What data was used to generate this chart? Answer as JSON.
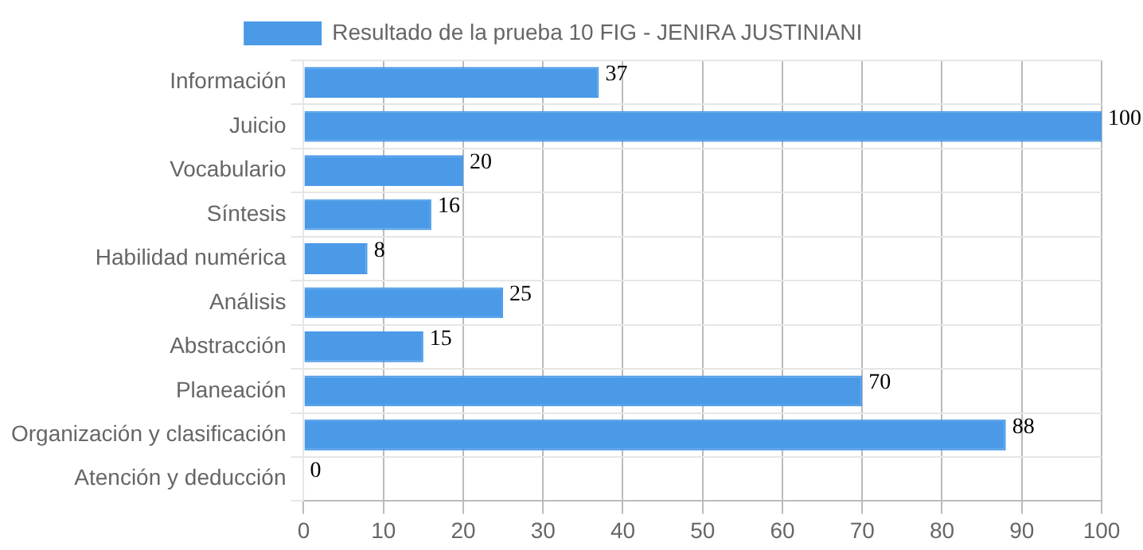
{
  "chart_data": {
    "type": "bar",
    "orientation": "horizontal",
    "categories": [
      "Información",
      "Juicio",
      "Vocabulario",
      "Síntesis",
      "Habilidad numérica",
      "Análisis",
      "Abstracción",
      "Planeación",
      "Organización y clasificación",
      "Atención y deducción"
    ],
    "series": [
      {
        "name": "Resultado de la prueba 10 FIG - JENIRA JUSTINIANI",
        "color": "#4a9ae8",
        "values": [
          37,
          100,
          20,
          16,
          8,
          25,
          15,
          70,
          88,
          0
        ]
      }
    ],
    "xlim": [
      0,
      100
    ],
    "xticks": [
      0,
      10,
      20,
      30,
      40,
      50,
      60,
      70,
      80,
      90,
      100
    ],
    "grid": true,
    "legend": "top",
    "data_labels": true
  }
}
